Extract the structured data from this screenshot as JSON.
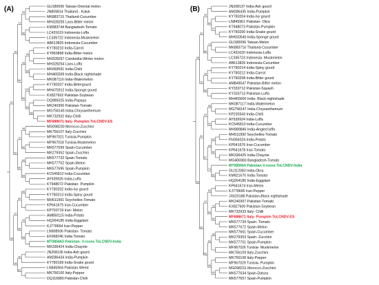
{
  "panels": [
    {
      "label": "(A)",
      "highlight": {
        "MF688671 Italy- Pumpkin ToLCNDV-ES": "#e8202a",
        "MT085663 Pakistan- V.rosea ToLCNDV-India": "#17a84a"
      },
      "leaves": [
        "GU180095 Taiwan-Oriental melon",
        "JN809814 Thailand - Katuk",
        "MK883715 Thailand-Cucumber",
        "MH328255 Laos-Bitter melon",
        "KM383744 Bangladesh-Tomato",
        "LC431619 Indonesia-Luffa",
        "LC335722 Indonesia-Muskmelon",
        "AB613825 Indonesia-Cucumber",
        "KY780210 India-Carrot",
        "KY860898 India-Bitter melon",
        "MH328257 Cambodia-Winter melon",
        "MH328254 Laos-Luffa",
        "MK069591 India-Chilli",
        "MH465599 India-Black nightshade",
        "MK087116 India-Watermelon",
        "KY780207 India-Bittergourd",
        "MH475912 India-Sponge gourd",
        "KX827602 Pakistan-Soybean",
        "DQ989325 India-Papaya",
        "MK240306 Pakistan-Tomato",
        "MG758145 India-Chrysanthemum",
        "MK732932 Italy-Chilli",
        "MF688671 Italy- Pumpkin ToLCNDV-ES",
        "MG098230 Morocco-Zucchini",
        "MK756107 Italy-Zucchini",
        "MF967021 Tunisia-Pumpkin",
        "MF967018 Tunisia-Muskmelon",
        "MK577699 Spain-Cucumber",
        "MK279352 Spain-Zucchini",
        "MK577733 Spain-Tomato",
        "MK577752 Spain-Melon",
        "MK577695 Spain-Pumpkin",
        "KC545812 India-Cucumber",
        "AY939926 India-Luffa",
        "KT948072 Pakistan- Pumpkin",
        "KY780202 India-Ivy gourd",
        "KY780213 India-Spiny gourd",
        "MH511991 Seychelles-Tomato",
        "KP641675 Iran-Cucumber",
        "KP793719 Iran- Melon",
        "AM850115 India-Potato",
        "HQ264185 India-Eggplant",
        "KJ778694 Iran-Pepper",
        "LN908936 Pakistan- Tomato",
        "EF068246 India-Tomato",
        "MT085663 Pakistan- V.rosea ToLCNDV-India",
        "MK336424 India-Chayote",
        "JN208136 India-Ash gourd",
        "AM286434 India-Pumpkin",
        "KY780199 India-Snake gourd",
        "LN845964 Pakistan-Weed",
        "MK756106 Italy-Pepper",
        "DQ116880 Pakistan-Chilli"
      ],
      "bootstrap": [
        "99",
        "96",
        "71",
        "90",
        "69",
        "93",
        "100",
        "88",
        "63",
        "65",
        "66",
        "95",
        "56",
        "52",
        "72",
        "64",
        "69",
        "68",
        "50",
        "97",
        "100",
        "99",
        "43",
        "38",
        "98",
        "67",
        "40",
        "60",
        "98",
        "48",
        "51",
        "69",
        "72",
        "75",
        "54",
        "92",
        "30",
        "64",
        "44",
        "98",
        "58",
        "63",
        "54",
        "58",
        "85",
        "48",
        "67"
      ]
    },
    {
      "label": "(B)",
      "highlight": {
        "MT085664 Pakistan-V.rosea ToLCNDV-India": "#17a84a",
        "MF688671 Italy- Pumpkin ToLCNDV-ES": "#e8202a"
      },
      "leaves": [
        "JN208137 India-Ash gourd",
        "AM286435 India-Pumpkin",
        "KY780204 India-Ivy gourd",
        "LN845961 Pakistan- Okra",
        "KT948073 Pakistan-Pumpkin",
        "KY780200 India-Snake gourd",
        "MH550540 India-Sponge gourd",
        "GU180096 Taiwan-Melon",
        "MK883716 Thailand-Cucumber",
        "LC431620 Indonesia-Luffa",
        "LC335723 Indonesia- Muskmelon",
        "AB613826 Indonesia-Cucumber",
        "KY780214 India-Spiny gourd",
        "KY780212 India-Carrot",
        "KY780208 India-Bitter gourd",
        "AM849547 Pakistan-Bitter melon",
        "KY333712 Pakistan-Squash",
        "KY333713 Pakistan-Luffa",
        "MH465600 India- Black nightshade",
        "MK087117 India-Watermelon",
        "MG758147 India-Chrysanthemum",
        "KP235543 India-Chilli",
        "AY939924 India-Luffa",
        "KC545813 India-Cucumber",
        "MH989846 India-Angled luffa",
        "MH511990 Seychelles-Tomato",
        "FN356024 India-Potato",
        "KP641676 Iran-Cucumber",
        "KP641678 Iran-Tomato",
        "MK336425 India-Chayote",
        "MG406983 Bangladesh-Tomato",
        "MT085664 Pakistan-V.rosea ToLCNDV-India",
        "GU112083 India-Okra",
        "KM921670 India-Tomato",
        "HQ264186 India-Eggplant",
        "KP641674 Iran-Melon",
        "KJ778695 Iran-Pepper",
        "JX620188 Pakistan-Black nightshade",
        "MK240307 Pakistan-Tomato",
        "KX827600 Pakistan-Soybean",
        "MK732933 Italy- Chilli",
        "MF688671 Italy- Pumpkin ToLCNDV-ES",
        "MK577734 Spain- Tomato",
        "MK577672 Spain-Melon",
        "MK577661 Spain-Cucumber",
        "MK279353 Spain- Zucchini",
        "MK577701 Spain-Pumpkin",
        "MF967026 Tunisia- Muskmelon",
        "MK756109 Italy-Zucchini",
        "MK756108 Italy-Pepper",
        "MF967029 Tunisia- Pumpkin",
        "MG098231 Morocco-Zucchini",
        "MK577634 Spain-Datura",
        "MK577657 Spain-Pumpkin"
      ],
      "bootstrap": [
        "97",
        "92",
        "99",
        "73",
        "86",
        "42",
        "99",
        "98",
        "70",
        "96",
        "66",
        "91",
        "62",
        "100",
        "84",
        "94",
        "60",
        "74",
        "67",
        "60",
        "62",
        "79",
        "99",
        "64",
        "97",
        "99",
        "63",
        "49",
        "38",
        "100",
        "65",
        "99",
        "72",
        "75",
        "55",
        "97",
        "69",
        "64",
        "94",
        "83",
        "96"
      ]
    }
  ]
}
